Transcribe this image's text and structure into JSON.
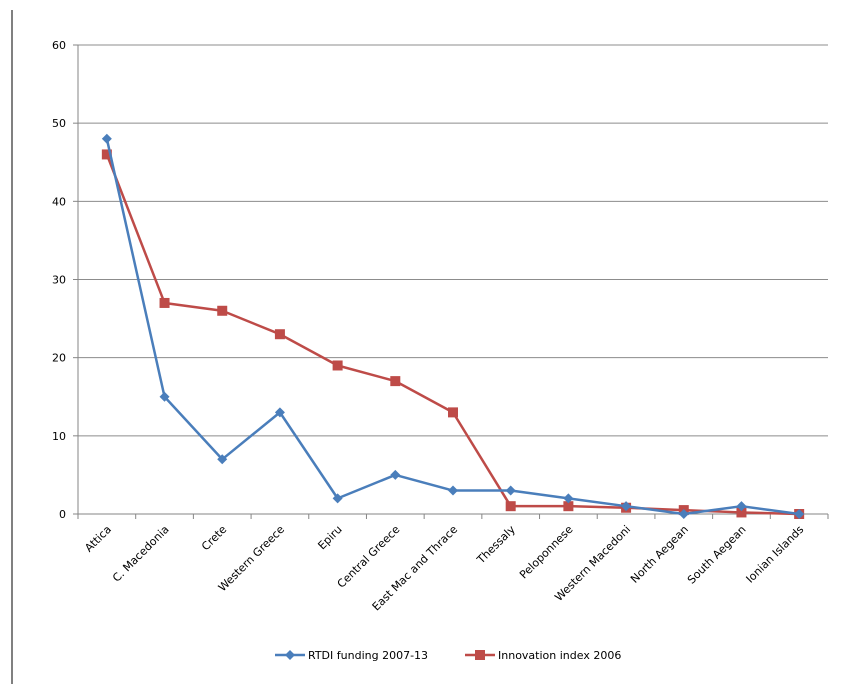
{
  "chart_data": {
    "type": "line",
    "title": "",
    "xlabel": "",
    "ylabel": "",
    "ylim": [
      0,
      60
    ],
    "yticks": [
      0,
      10,
      20,
      30,
      40,
      50,
      60
    ],
    "grid": true,
    "legend_position": "bottom",
    "categories": [
      "Attica",
      "C. Macedonia",
      "Crete",
      "Western Greece",
      "Epiru",
      "Central Greece",
      "East Mac and Thrace",
      "Thessaly",
      "Peloponnese",
      "Western Macedoni",
      "North Aegean",
      "South Aegean",
      "Ionian Islands"
    ],
    "series": [
      {
        "name": "RTDI funding 2007-13",
        "color": "#4a7ebb",
        "marker": "diamond",
        "values": [
          48,
          15,
          7,
          13,
          2,
          5,
          3,
          3,
          2,
          1,
          0,
          1,
          0
        ]
      },
      {
        "name": "Innovation index 2006",
        "color": "#be4b48",
        "marker": "square",
        "values": [
          46,
          27,
          26,
          23,
          19,
          17,
          13,
          1,
          1,
          0.8,
          0.5,
          0.2,
          0
        ]
      }
    ]
  }
}
